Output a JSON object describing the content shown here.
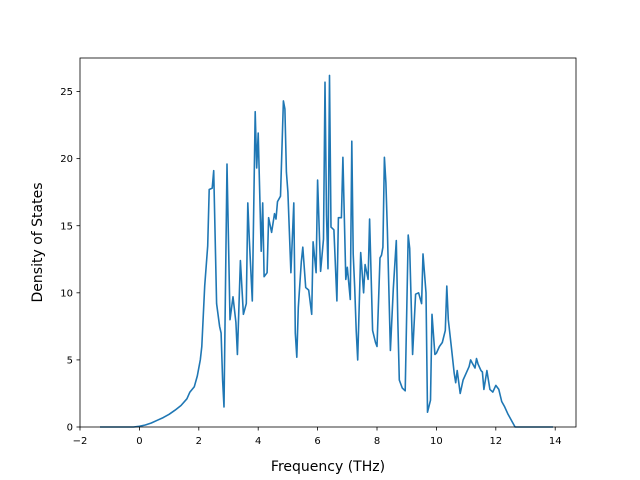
{
  "chart_data": {
    "type": "line",
    "title": "",
    "xlabel": "Frequency (THz)",
    "ylabel": "Density of States",
    "xlim": [
      -2.0,
      14.7
    ],
    "ylim": [
      0,
      27.5
    ],
    "xticks": [
      -2,
      0,
      2,
      4,
      6,
      8,
      10,
      12,
      14
    ],
    "yticks": [
      0,
      5,
      10,
      15,
      20,
      25
    ],
    "grid": false,
    "legend": "none",
    "colors": {
      "line": "#1f77b4",
      "axes": "#000000",
      "background": "#ffffff"
    },
    "series": [
      {
        "x": [
          -1.3,
          -0.2,
          0.0,
          0.2,
          0.4,
          0.6,
          0.8,
          1.0,
          1.2,
          1.4,
          1.6,
          1.7,
          1.85,
          1.95,
          2.05,
          2.1,
          2.2,
          2.3,
          2.35,
          2.45,
          2.5,
          2.6,
          2.7,
          2.75,
          2.8,
          2.85,
          2.95,
          3.05,
          3.15,
          3.25,
          3.3,
          3.4,
          3.5,
          3.6,
          3.65,
          3.7,
          3.8,
          3.9,
          3.95,
          4.0,
          4.1,
          4.15,
          4.2,
          4.3,
          4.35,
          4.45,
          4.55,
          4.6,
          4.65,
          4.75,
          4.85,
          4.9,
          4.95,
          5.0,
          5.1,
          5.2,
          5.25,
          5.3,
          5.35,
          5.45,
          5.5,
          5.6,
          5.7,
          5.8,
          5.85,
          5.95,
          6.0,
          6.1,
          6.2,
          6.25,
          6.3,
          6.35,
          6.4,
          6.45,
          6.55,
          6.65,
          6.7,
          6.8,
          6.85,
          6.95,
          7.0,
          7.1,
          7.15,
          7.2,
          7.25,
          7.3,
          7.35,
          7.45,
          7.55,
          7.6,
          7.7,
          7.75,
          7.85,
          7.95,
          8.0,
          8.1,
          8.15,
          8.2,
          8.25,
          8.3,
          8.35,
          8.45,
          8.55,
          8.65,
          8.7,
          8.75,
          8.85,
          8.95,
          9.05,
          9.1,
          9.2,
          9.3,
          9.4,
          9.5,
          9.55,
          9.65,
          9.7,
          9.8,
          9.85,
          9.95,
          10.0,
          10.1,
          10.2,
          10.3,
          10.35,
          10.4,
          10.5,
          10.6,
          10.65,
          10.7,
          10.8,
          10.9,
          11.0,
          11.1,
          11.15,
          11.2,
          11.3,
          11.35,
          11.4,
          11.5,
          11.55,
          11.6,
          11.7,
          11.8,
          11.9,
          12.0,
          12.1,
          12.2,
          12.3,
          12.4,
          12.55,
          12.65,
          13.0,
          13.9
        ],
        "y": [
          0,
          0,
          0.05,
          0.15,
          0.3,
          0.5,
          0.7,
          0.95,
          1.25,
          1.6,
          2.1,
          2.6,
          3.0,
          3.8,
          5.0,
          6.0,
          10.5,
          13.5,
          17.7,
          17.8,
          19.1,
          9.2,
          7.5,
          7.0,
          3.5,
          1.5,
          19.6,
          8.0,
          9.7,
          7.8,
          5.4,
          12.4,
          8.4,
          9.2,
          16.7,
          14.0,
          9.4,
          23.5,
          19.3,
          21.9,
          13.1,
          16.7,
          11.2,
          11.5,
          15.6,
          14.5,
          15.9,
          15.5,
          16.8,
          17.2,
          24.3,
          23.7,
          19.0,
          17.5,
          11.5,
          16.7,
          7.0,
          5.2,
          8.9,
          12.3,
          13.4,
          10.4,
          10.2,
          8.4,
          13.8,
          11.5,
          18.4,
          11.6,
          14.0,
          25.7,
          15.8,
          11.8,
          26.2,
          14.9,
          14.7,
          9.4,
          15.6,
          15.6,
          20.1,
          11.0,
          11.9,
          9.5,
          21.3,
          12.9,
          10.4,
          7.2,
          5.0,
          13.0,
          10.0,
          12.1,
          11.0,
          15.5,
          7.2,
          6.3,
          6.0,
          12.6,
          12.8,
          13.4,
          20.1,
          18.2,
          14.6,
          5.7,
          10.3,
          13.9,
          8.0,
          3.5,
          2.9,
          2.7,
          14.3,
          13.3,
          5.4,
          9.9,
          10.0,
          9.2,
          12.9,
          10.0,
          1.1,
          2.0,
          8.4,
          5.4,
          5.5,
          6.0,
          6.3,
          7.2,
          10.5,
          8.0,
          6.0,
          4.0,
          3.3,
          4.2,
          2.5,
          3.5,
          4.0,
          4.5,
          5.0,
          4.8,
          4.4,
          5.1,
          4.7,
          4.2,
          4.1,
          2.8,
          4.2,
          2.8,
          2.6,
          3.1,
          2.8,
          1.9,
          1.5,
          1.0,
          0.4,
          0,
          0,
          0
        ]
      }
    ]
  }
}
